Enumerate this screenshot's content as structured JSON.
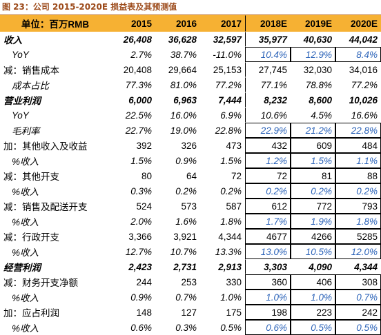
{
  "title": "图 23：公司 2015-2020E 损益表及其预测值",
  "table": {
    "header": [
      "单位：百万RMB",
      "2015",
      "2016",
      "2017",
      "2018E",
      "2019E",
      "2020E"
    ],
    "rows": [
      [
        "收入",
        "26,408",
        "36,628",
        "32,597",
        "35,977",
        "40,630",
        "44,042"
      ],
      [
        "YoY",
        "2.7%",
        "38.7%",
        "-11.0%",
        "10.4%",
        "12.9%",
        "8.4%"
      ],
      [
        "减：销售成本",
        "20,408",
        "29,664",
        "25,153",
        "27,745",
        "32,030",
        "34,016"
      ],
      [
        "成本占比",
        "77.3%",
        "81.0%",
        "77.2%",
        "77.1%",
        "78.8%",
        "77.2%"
      ],
      [
        "营业利润",
        "6,000",
        "6,963",
        "7,444",
        "8,232",
        "8,600",
        "10,026"
      ],
      [
        "YoY",
        "22.5%",
        "16.0%",
        "6.9%",
        "10.6%",
        "4.5%",
        "16.6%"
      ],
      [
        "毛利率",
        "22.7%",
        "19.0%",
        "22.8%",
        "22.9%",
        "21.2%",
        "22.8%"
      ],
      [
        "加：其他收入及收益",
        "392",
        "326",
        "473",
        "432",
        "609",
        "484"
      ],
      [
        "%收入",
        "1.5%",
        "0.9%",
        "1.5%",
        "1.2%",
        "1.5%",
        "1.1%"
      ],
      [
        "减：其他开支",
        "80",
        "64",
        "72",
        "72",
        "81",
        "88"
      ],
      [
        "%收入",
        "0.3%",
        "0.2%",
        "0.2%",
        "0.2%",
        "0.2%",
        "0.2%"
      ],
      [
        "减：销售及配送开支",
        "524",
        "573",
        "587",
        "612",
        "772",
        "793"
      ],
      [
        "%收入",
        "2.0%",
        "1.6%",
        "1.8%",
        "1.7%",
        "1.9%",
        "1.8%"
      ],
      [
        "减：行政开支",
        "3,366",
        "3,921",
        "4,344",
        "4677",
        "4266",
        "5285"
      ],
      [
        "%收入",
        "12.7%",
        "10.7%",
        "13.3%",
        "13.0%",
        "10.5%",
        "12.0%"
      ],
      [
        "经营利润",
        "2,423",
        "2,731",
        "2,913",
        "3,303",
        "4,090",
        "4,344"
      ],
      [
        "减：财务开支净额",
        "244",
        "253",
        "330",
        "360",
        "406",
        "308"
      ],
      [
        "%收入",
        "0.9%",
        "0.7%",
        "1.0%",
        "1.0%",
        "1.0%",
        "0.7%"
      ],
      [
        "加：应占利润",
        "148",
        "127",
        "175",
        "198",
        "223",
        "242"
      ],
      [
        "%收入",
        "0.6%",
        "0.3%",
        "0.5%",
        "0.6%",
        "0.5%",
        "0.5%"
      ]
    ]
  }
}
